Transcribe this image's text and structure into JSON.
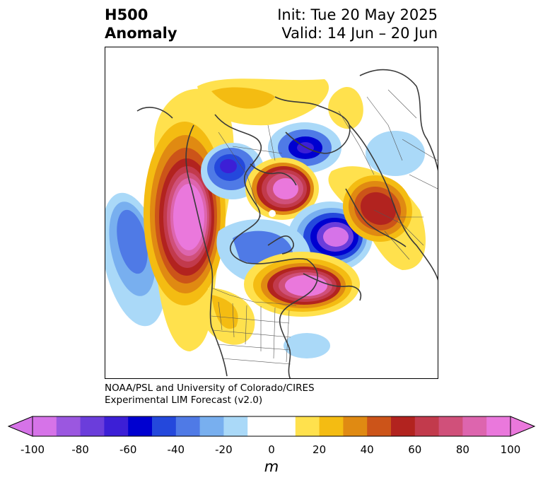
{
  "title": {
    "left_line1": "H500",
    "left_line2": "Anomaly",
    "right_line1": "Init: Tue 20 May 2025",
    "right_line2": "Valid: 14 Jun – 20 Jun"
  },
  "credit": {
    "line1": "NOAA/PSL and University of Colorado/CIRES",
    "line2": "Experimental LIM Forecast (v2.0)"
  },
  "colorbar": {
    "unit": "m",
    "ticks": [
      "-100",
      "-80",
      "-60",
      "-40",
      "-20",
      "0",
      "20",
      "40",
      "60",
      "80",
      "100"
    ],
    "colors": [
      "#d673e8",
      "#9b57e0",
      "#6b3ddb",
      "#3c1fd6",
      "#0000d0",
      "#2448dc",
      "#4f7ae6",
      "#78afef",
      "#aad9f8",
      "#ffffff",
      "#ffffff",
      "#ffe14d",
      "#f4bc12",
      "#e08a12",
      "#cc5419",
      "#b2231f",
      "#c23a4c",
      "#d0507a",
      "#dd65ae",
      "#ea78dc"
    ]
  },
  "map": {
    "projection": "north-polar-stereographic",
    "field": "500 hPa geopotential height anomaly",
    "features": [
      {
        "name": "west-coast-ridge",
        "sign": "positive",
        "peak": 100
      },
      {
        "name": "eastern-canada-ridge",
        "sign": "positive",
        "peak": 100
      },
      {
        "name": "arctic-ridge",
        "sign": "positive",
        "peak": 100
      },
      {
        "name": "north-atlantic-europe-ridge",
        "sign": "positive",
        "peak": 60
      },
      {
        "name": "greenland-trough",
        "sign": "negative",
        "peak": -100
      },
      {
        "name": "north-pacific-trough",
        "sign": "negative",
        "peak": -40
      },
      {
        "name": "siberian-trough",
        "sign": "negative",
        "peak": -60
      },
      {
        "name": "east-asia-trough",
        "sign": "negative",
        "peak": -60
      }
    ]
  }
}
